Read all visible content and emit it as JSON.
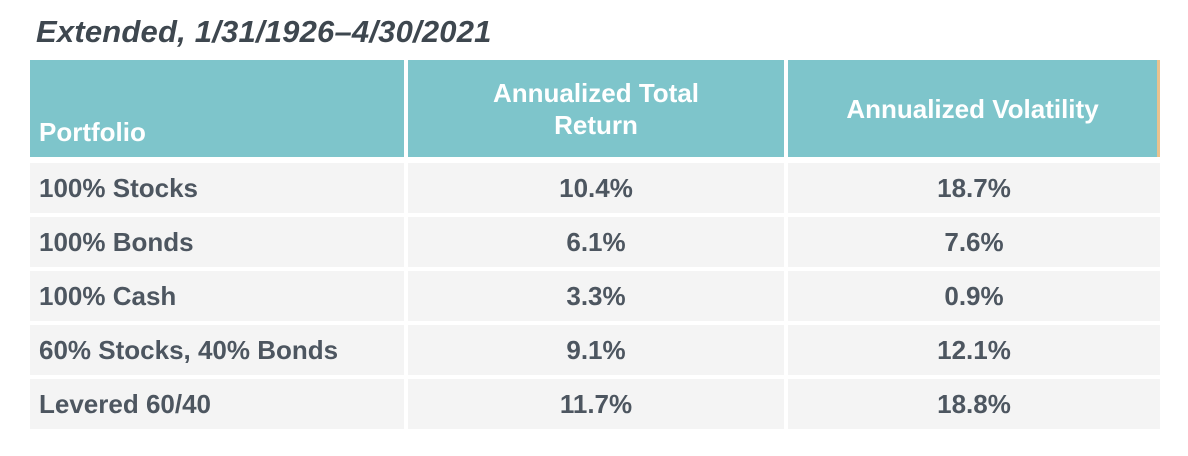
{
  "page": {
    "title": "Extended, 1/31/1926–4/30/2021"
  },
  "colors": {
    "header_bg": "#7ec5cb",
    "header_text": "#ffffff",
    "row_bg": "#f4f4f4",
    "row_text": "#4d5660",
    "title_text": "#3e474f",
    "accent_border": "#eac28e",
    "page_bg": "#ffffff"
  },
  "table": {
    "columns": [
      {
        "label": "Portfolio"
      },
      {
        "label": "Annualized Total Return"
      },
      {
        "label": "Annualized Volatility"
      }
    ],
    "rows": [
      {
        "cells": [
          "100% Stocks",
          "10.4%",
          "18.7%"
        ]
      },
      {
        "cells": [
          "100% Bonds",
          "6.1%",
          "7.6%"
        ]
      },
      {
        "cells": [
          "100% Cash",
          "3.3%",
          "0.9%"
        ]
      },
      {
        "cells": [
          "60% Stocks, 40% Bonds",
          "9.1%",
          "12.1%"
        ]
      },
      {
        "cells": [
          "Levered 60/40",
          "11.7%",
          "18.8%"
        ]
      }
    ]
  },
  "chart_data": {
    "type": "table",
    "title": "Extended, 1/31/1926–4/30/2021",
    "columns": [
      "Portfolio",
      "Annualized Total Return",
      "Annualized Volatility"
    ],
    "categories": [
      "100% Stocks",
      "100% Bonds",
      "100% Cash",
      "60% Stocks, 40% Bonds",
      "Levered 60/40"
    ],
    "series": [
      {
        "name": "Annualized Total Return",
        "unit": "%",
        "values": [
          10.4,
          6.1,
          3.3,
          9.1,
          11.7
        ]
      },
      {
        "name": "Annualized Volatility",
        "unit": "%",
        "values": [
          18.7,
          7.6,
          0.9,
          12.1,
          18.8
        ]
      }
    ],
    "rows": [
      [
        "100% Stocks",
        "10.4%",
        "18.7%"
      ],
      [
        "100% Bonds",
        "6.1%",
        "7.6%"
      ],
      [
        "100% Cash",
        "3.3%",
        "0.9%"
      ],
      [
        "60% Stocks, 40% Bonds",
        "9.1%",
        "12.1%"
      ],
      [
        "Levered 60/40",
        "11.7%",
        "18.8%"
      ]
    ],
    "layout": {
      "grid": false,
      "legend_position": "none",
      "header_style": "teal-band",
      "row_style": "light-gray-striped-uniform"
    }
  }
}
